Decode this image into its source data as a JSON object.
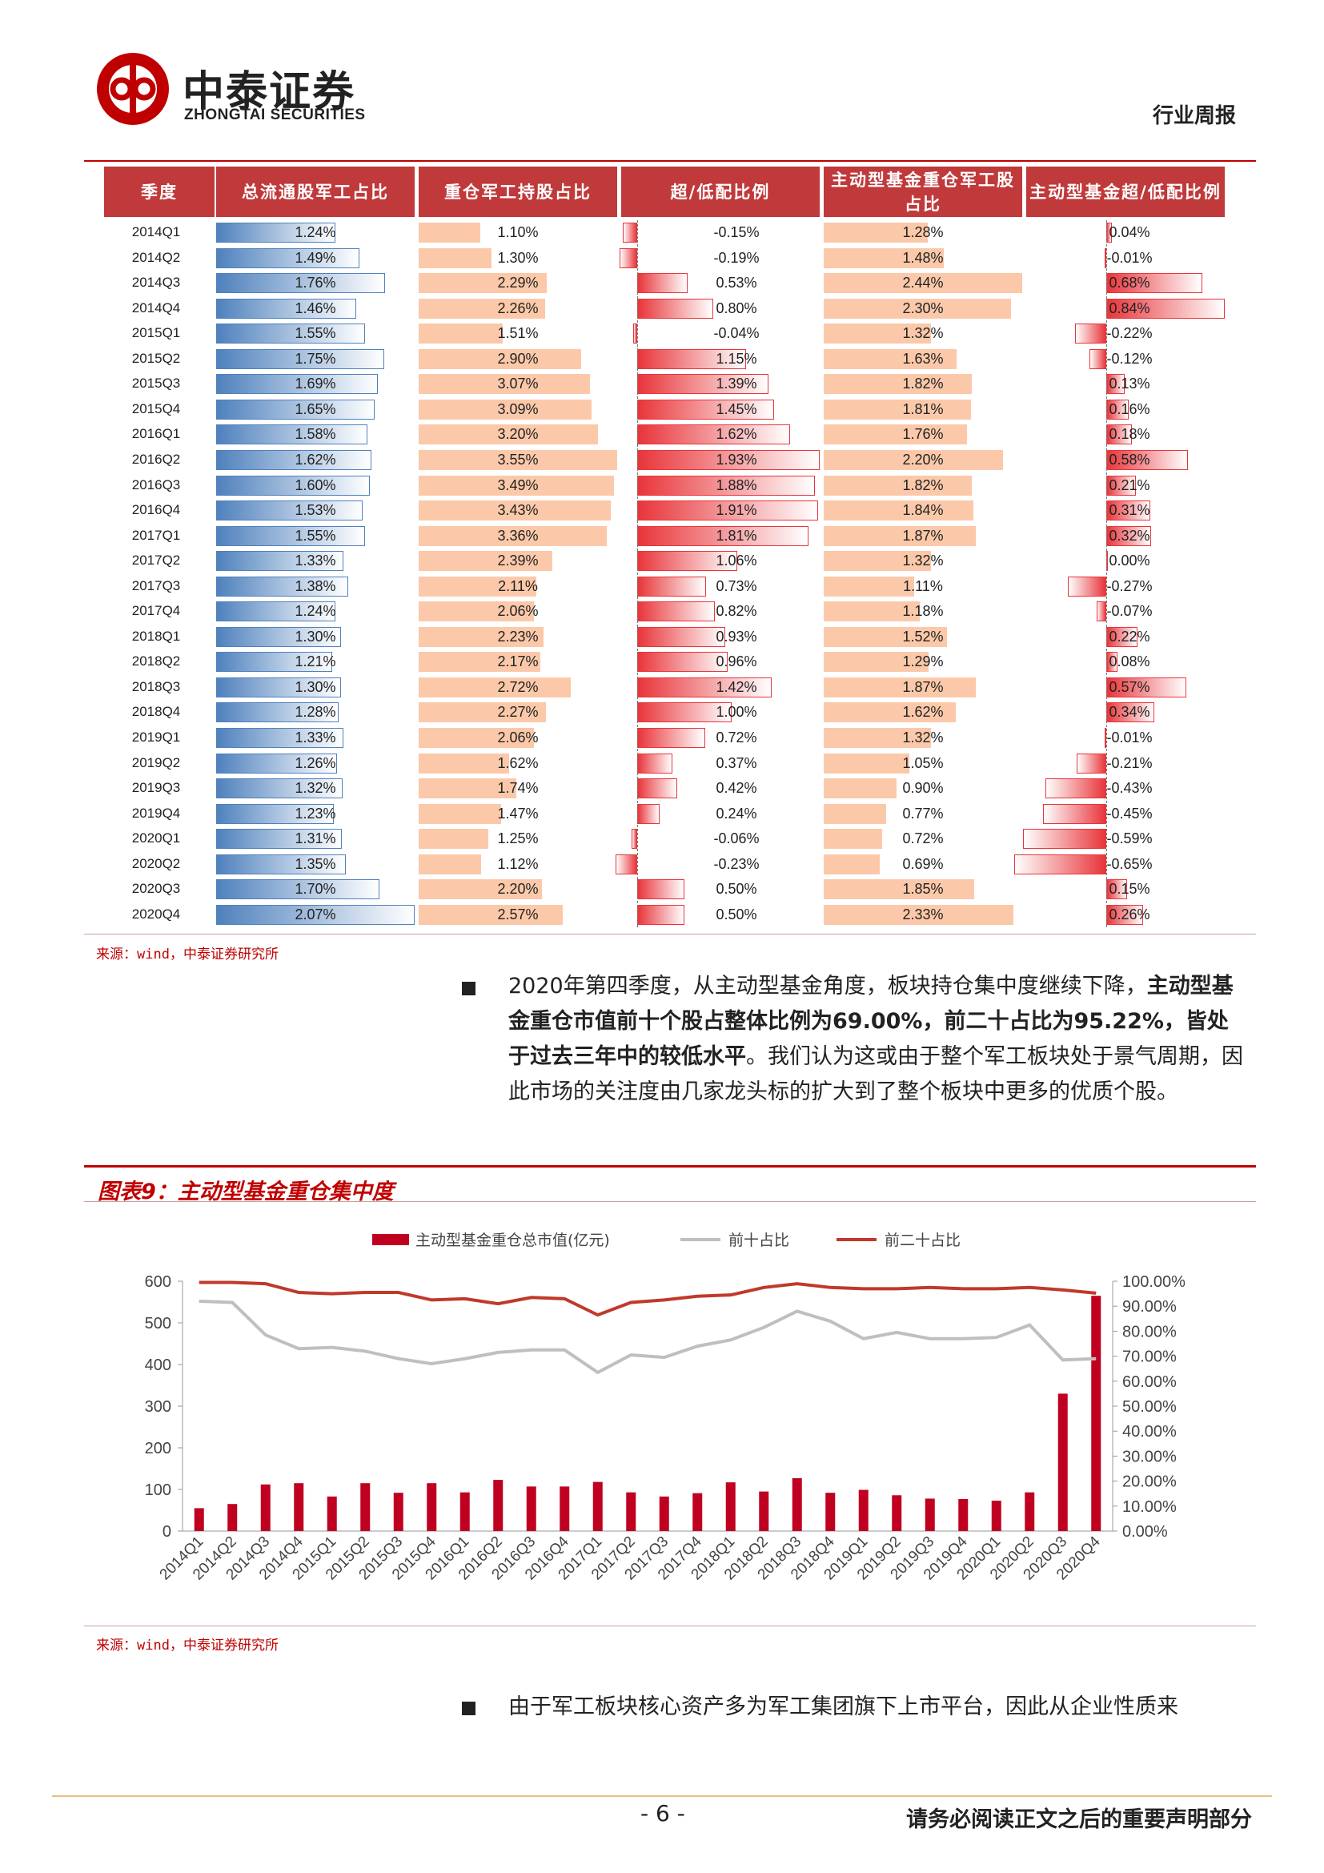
{
  "header": {
    "brand_cn": "中泰证券",
    "brand_en": "ZHONGTAI SECURITIES",
    "report_type": "行业周报"
  },
  "table": {
    "headers": [
      "季度",
      "总流通股军工占比",
      "重仓军工持股占比",
      "超/低配比例",
      "主动型基金重仓军工股占比",
      "主动型基金超/低配比例"
    ],
    "rows": [
      [
        "2014Q1",
        "1.24%",
        "1.10%",
        "-0.15%",
        "1.28%",
        "0.04%"
      ],
      [
        "2014Q2",
        "1.49%",
        "1.30%",
        "-0.19%",
        "1.48%",
        "-0.01%"
      ],
      [
        "2014Q3",
        "1.76%",
        "2.29%",
        "0.53%",
        "2.44%",
        "0.68%"
      ],
      [
        "2014Q4",
        "1.46%",
        "2.26%",
        "0.80%",
        "2.30%",
        "0.84%"
      ],
      [
        "2015Q1",
        "1.55%",
        "1.51%",
        "-0.04%",
        "1.32%",
        "-0.22%"
      ],
      [
        "2015Q2",
        "1.75%",
        "2.90%",
        "1.15%",
        "1.63%",
        "-0.12%"
      ],
      [
        "2015Q3",
        "1.69%",
        "3.07%",
        "1.39%",
        "1.82%",
        "0.13%"
      ],
      [
        "2015Q4",
        "1.65%",
        "3.09%",
        "1.45%",
        "1.81%",
        "0.16%"
      ],
      [
        "2016Q1",
        "1.58%",
        "3.20%",
        "1.62%",
        "1.76%",
        "0.18%"
      ],
      [
        "2016Q2",
        "1.62%",
        "3.55%",
        "1.93%",
        "2.20%",
        "0.58%"
      ],
      [
        "2016Q3",
        "1.60%",
        "3.49%",
        "1.88%",
        "1.82%",
        "0.21%"
      ],
      [
        "2016Q4",
        "1.53%",
        "3.43%",
        "1.91%",
        "1.84%",
        "0.31%"
      ],
      [
        "2017Q1",
        "1.55%",
        "3.36%",
        "1.81%",
        "1.87%",
        "0.32%"
      ],
      [
        "2017Q2",
        "1.33%",
        "2.39%",
        "1.06%",
        "1.32%",
        "0.00%"
      ],
      [
        "2017Q3",
        "1.38%",
        "2.11%",
        "0.73%",
        "1.11%",
        "-0.27%"
      ],
      [
        "2017Q4",
        "1.24%",
        "2.06%",
        "0.82%",
        "1.18%",
        "-0.07%"
      ],
      [
        "2018Q1",
        "1.30%",
        "2.23%",
        "0.93%",
        "1.52%",
        "0.22%"
      ],
      [
        "2018Q2",
        "1.21%",
        "2.17%",
        "0.96%",
        "1.29%",
        "0.08%"
      ],
      [
        "2018Q3",
        "1.30%",
        "2.72%",
        "1.42%",
        "1.87%",
        "0.57%"
      ],
      [
        "2018Q4",
        "1.28%",
        "2.27%",
        "1.00%",
        "1.62%",
        "0.34%"
      ],
      [
        "2019Q1",
        "1.33%",
        "2.06%",
        "0.72%",
        "1.32%",
        "-0.01%"
      ],
      [
        "2019Q2",
        "1.26%",
        "1.62%",
        "0.37%",
        "1.05%",
        "-0.21%"
      ],
      [
        "2019Q3",
        "1.32%",
        "1.74%",
        "0.42%",
        "0.90%",
        "-0.43%"
      ],
      [
        "2019Q4",
        "1.23%",
        "1.47%",
        "0.24%",
        "0.77%",
        "-0.45%"
      ],
      [
        "2020Q1",
        "1.31%",
        "1.25%",
        "-0.06%",
        "0.72%",
        "-0.59%"
      ],
      [
        "2020Q2",
        "1.35%",
        "1.12%",
        "-0.23%",
        "0.69%",
        "-0.65%"
      ],
      [
        "2020Q3",
        "1.70%",
        "2.20%",
        "0.50%",
        "1.85%",
        "0.15%"
      ],
      [
        "2020Q4",
        "2.07%",
        "2.57%",
        "0.50%",
        "2.33%",
        "0.26%"
      ]
    ],
    "source": "来源：wind，中泰证券研究所"
  },
  "paragraph1": {
    "normal1": "2020年第四季度，从主动型基金角度，板块持仓集中度继续下降，",
    "bold": "主动型基金重仓市值前十个股占整体比例为69.00%，前二十占比为95.22%，皆处于过去三年中的较低水平",
    "normal2": "。我们认为这或由于整个军工板块处于景气周期，因此市场的关注度由几家龙头标的扩大到了整个板块中更多的优质个股。"
  },
  "figure": {
    "title": "图表9：主动型基金重仓集中度",
    "source": "来源：wind，中泰证券研究所"
  },
  "chart_data": {
    "type": "bar",
    "categories": [
      "2014Q1",
      "2014Q2",
      "2014Q3",
      "2014Q4",
      "2015Q1",
      "2015Q2",
      "2015Q3",
      "2015Q4",
      "2016Q1",
      "2016Q2",
      "2016Q3",
      "2016Q4",
      "2017Q1",
      "2017Q2",
      "2017Q3",
      "2017Q4",
      "2018Q1",
      "2018Q2",
      "2018Q3",
      "2018Q4",
      "2019Q1",
      "2019Q2",
      "2019Q3",
      "2019Q4",
      "2020Q1",
      "2020Q2",
      "2020Q3",
      "2020Q4"
    ],
    "series": [
      {
        "name": "主动型基金重仓总市值(亿元)",
        "kind": "bar",
        "axis": "left",
        "color": "#c00020",
        "values": [
          55,
          65,
          112,
          115,
          83,
          115,
          92,
          115,
          93,
          123,
          107,
          107,
          118,
          93,
          83,
          91,
          117,
          95,
          127,
          92,
          99,
          86,
          78,
          77,
          73,
          93,
          330,
          565
        ]
      },
      {
        "name": "前十占比",
        "kind": "line",
        "axis": "right",
        "color": "#bfbfbf",
        "values": [
          92.0,
          91.5,
          78.5,
          73.0,
          73.5,
          72.0,
          69.0,
          67.0,
          69.0,
          71.5,
          72.5,
          72.5,
          63.5,
          70.5,
          69.5,
          74.0,
          76.5,
          81.5,
          88.0,
          84.0,
          77.0,
          79.5,
          77.0,
          77.0,
          77.5,
          82.5,
          68.5,
          69.0
        ]
      },
      {
        "name": "前二十占比",
        "kind": "line",
        "axis": "right",
        "color": "#c0392b",
        "values": [
          99.5,
          99.5,
          99.0,
          95.5,
          95.0,
          95.5,
          95.5,
          92.5,
          93.0,
          91.0,
          93.5,
          93.0,
          86.5,
          91.5,
          92.5,
          94.0,
          94.5,
          97.5,
          99.0,
          97.5,
          97.0,
          97.0,
          97.5,
          97.0,
          97.0,
          97.5,
          96.5,
          95.22
        ]
      }
    ],
    "yleft_ticks": [
      "600",
      "500",
      "400",
      "300",
      "200",
      "100",
      "0"
    ],
    "yleft_range": [
      0,
      600
    ],
    "yright_ticks": [
      "100.00%",
      "90.00%",
      "80.00%",
      "70.00%",
      "60.00%",
      "50.00%",
      "40.00%",
      "30.00%",
      "20.00%",
      "10.00%",
      "0.00%"
    ],
    "yright_range": [
      0,
      100
    ],
    "legend_position": "top-center"
  },
  "paragraph2": "由于军工板块核心资产多为军工集团旗下上市平台，因此从企业性质来",
  "footer": {
    "page": "- 6 -",
    "note": "请务必阅读正文之后的重要声明部分"
  }
}
